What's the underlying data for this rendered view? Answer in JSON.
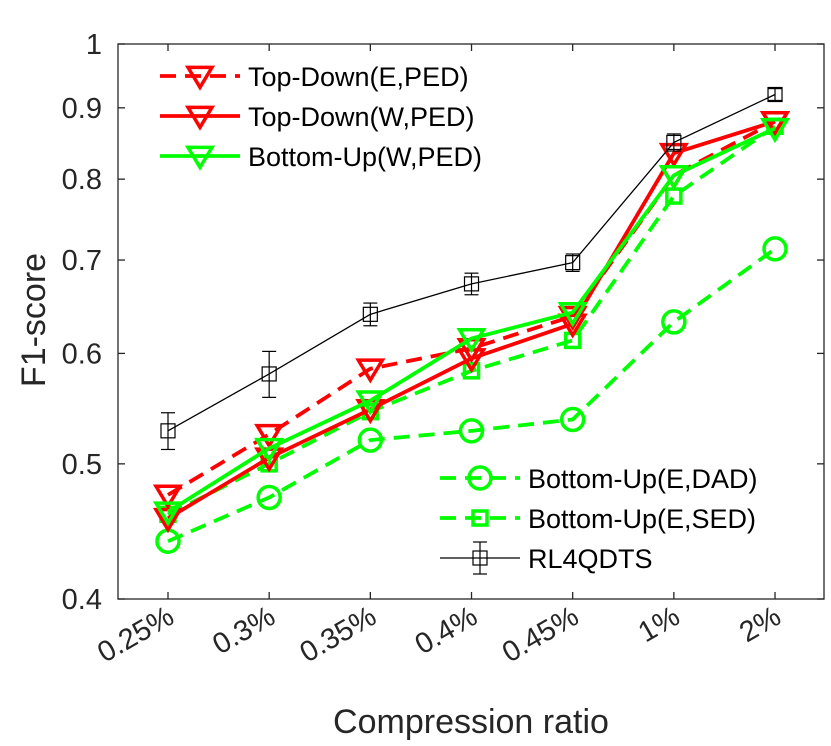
{
  "chart_data": {
    "type": "line",
    "xlabel": "Compression ratio",
    "ylabel": "F1-score",
    "yscale": "log",
    "ylim": [
      0.4,
      1.0
    ],
    "categories": [
      "0.25%",
      "0.3%",
      "0.35%",
      "0.4%",
      "0.45%",
      "1%",
      "2%"
    ],
    "yticks": [
      {
        "value": 0.4,
        "label": "0.4"
      },
      {
        "value": 0.5,
        "label": "0.5"
      },
      {
        "value": 0.6,
        "label": "0.6"
      },
      {
        "value": 0.7,
        "label": "0.7"
      },
      {
        "value": 0.8,
        "label": "0.8"
      },
      {
        "value": 0.9,
        "label": "0.9"
      },
      {
        "value": 1.0,
        "label": "1"
      }
    ],
    "grid": false,
    "series": [
      {
        "name": "Top-Down(E,PED)",
        "color": "#ff0000",
        "dash": "dashed",
        "marker": "triangle-down",
        "values": [
          0.475,
          0.525,
          0.585,
          0.605,
          0.638,
          0.805,
          0.88
        ]
      },
      {
        "name": "Top-Down(W,PED)",
        "color": "#ff0000",
        "dash": "solid",
        "marker": "triangle-down",
        "values": [
          0.457,
          0.505,
          0.547,
          0.595,
          0.63,
          0.835,
          0.88
        ]
      },
      {
        "name": "Bottom-Up(W,PED)",
        "color": "#00ff00",
        "dash": "solid",
        "marker": "triangle-down",
        "values": [
          0.462,
          0.513,
          0.555,
          0.615,
          0.642,
          0.805,
          0.87
        ]
      },
      {
        "name": "Bottom-Up(E,DAD)",
        "color": "#00ff00",
        "dash": "dashed",
        "marker": "circle",
        "values": [
          0.44,
          0.473,
          0.52,
          0.528,
          0.538,
          0.632,
          0.713
        ]
      },
      {
        "name": "Bottom-Up(E,SED)",
        "color": "#00ff00",
        "dash": "dashed",
        "marker": "square",
        "values": [
          0.46,
          0.5,
          0.545,
          0.583,
          0.613,
          0.778,
          0.873
        ]
      },
      {
        "name": "RL4QDTS",
        "color": "#000000",
        "dash": "solid",
        "marker": "square-errorbar",
        "values": [
          0.528,
          0.58,
          0.64,
          0.673,
          0.697,
          0.85,
          0.92
        ],
        "errors": [
          0.016,
          0.022,
          0.012,
          0.012,
          0.01,
          0.012,
          0.009
        ]
      }
    ],
    "legends": [
      {
        "position": "top-left",
        "entries": [
          "Top-Down(E,PED)",
          "Top-Down(W,PED)",
          "Bottom-Up(W,PED)"
        ]
      },
      {
        "position": "bottom-right",
        "entries": [
          "Bottom-Up(E,DAD)",
          "Bottom-Up(E,SED)",
          "RL4QDTS"
        ]
      }
    ]
  }
}
